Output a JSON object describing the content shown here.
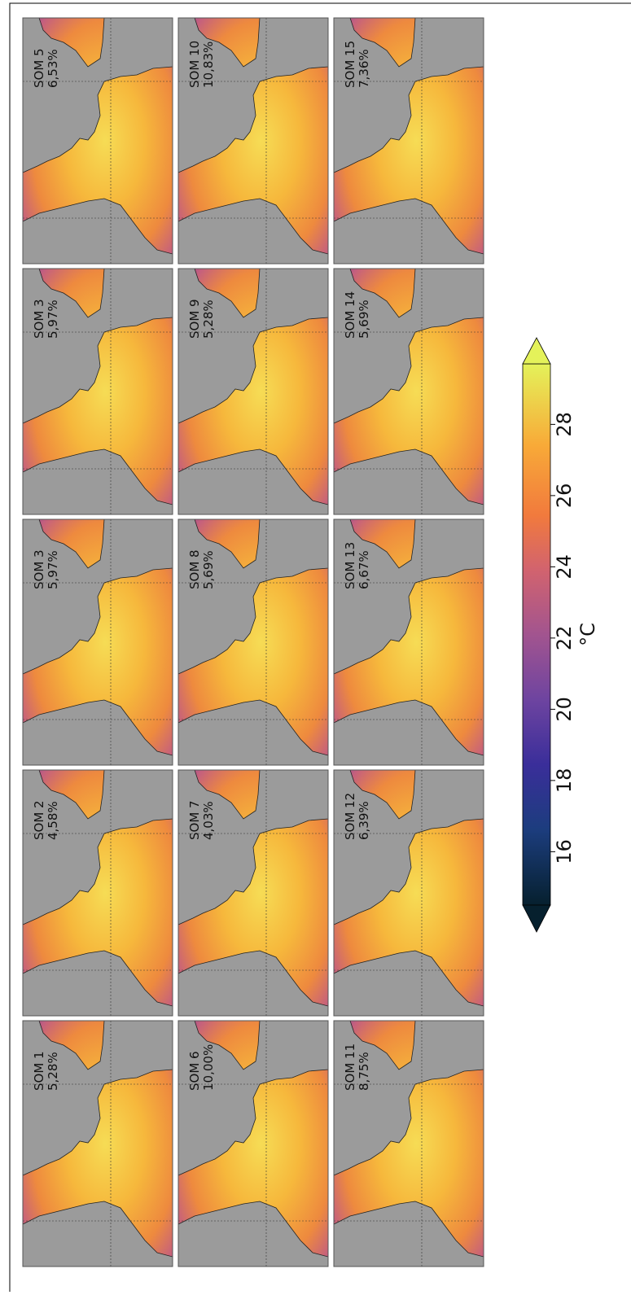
{
  "panels": [
    {
      "title": "SOM 1",
      "share": "5,28%"
    },
    {
      "title": "SOM 2",
      "share": "4,58%"
    },
    {
      "title": "SOM 3",
      "share": "5,97%"
    },
    {
      "title": "SOM 3",
      "share": "5,97%"
    },
    {
      "title": "SOM 5",
      "share": "6,53%"
    },
    {
      "title": "SOM 6",
      "share": "10,00%"
    },
    {
      "title": "SOM 7",
      "share": "4,03%"
    },
    {
      "title": "SOM 8",
      "share": "5,69%"
    },
    {
      "title": "SOM 9",
      "share": "5,28%"
    },
    {
      "title": "SOM 10",
      "share": "10,83%"
    },
    {
      "title": "SOM 11",
      "share": "8,75%"
    },
    {
      "title": "SOM 12",
      "share": "6,39%"
    },
    {
      "title": "SOM 13",
      "share": "6,67%"
    },
    {
      "title": "SOM 14",
      "share": "5,69%"
    },
    {
      "title": "SOM 15",
      "share": "7,36%"
    }
  ],
  "colorbar": {
    "label": "°C",
    "range": [
      14.5,
      29.7
    ],
    "ticks": [
      16,
      18,
      20,
      22,
      24,
      26,
      28
    ]
  }
}
